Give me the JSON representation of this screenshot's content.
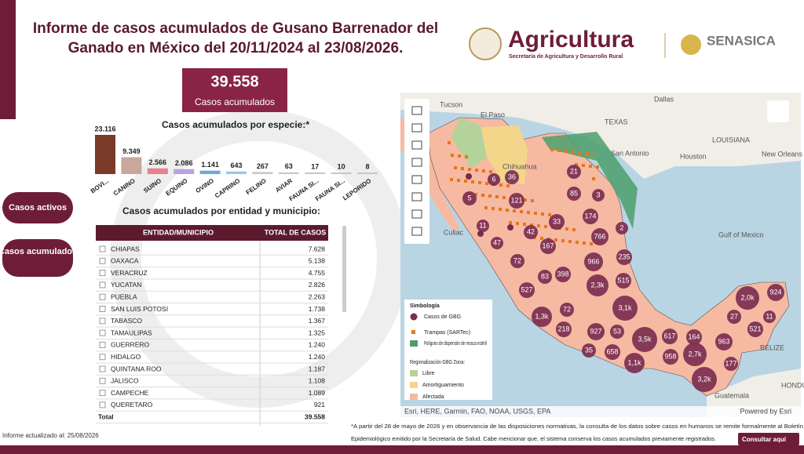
{
  "header": {
    "title_lines": [
      "Informe de casos acumulados de Gusano Barrenador del",
      "Ganado en México del 20/11/2024 al 23/08/2026."
    ],
    "logo": "Agricultura",
    "logo_sub": "Secretaría de Agricultura y Desarrollo Rural",
    "logo2": "SENASICA"
  },
  "kpi": {
    "value": "39.558",
    "label": "Casos acumulados"
  },
  "buttons": [
    "Casos activos",
    "Casos acumulados"
  ],
  "chart_data": {
    "type": "bar",
    "title": "Casos acumulados por especie:*",
    "categories": [
      "BOVI...",
      "CANINO",
      "SUINO",
      "EQUINO",
      "OVINO",
      "CAPRINO",
      "FELINO",
      "AVIAR",
      "FAUNA SI...",
      "FAUNA SI...",
      "LEPORIDO"
    ],
    "values": [
      23116,
      9349,
      2566,
      2086,
      1141,
      643,
      267,
      63,
      17,
      10,
      8
    ],
    "value_labels": [
      "23.116",
      "9.349",
      "2.566",
      "2.086",
      "1.141",
      "643",
      "267",
      "63",
      "17",
      "10",
      "8"
    ],
    "colors": [
      "#7b3b2a",
      "#c9a79c",
      "#e8808f",
      "#b8a3dc",
      "#6fa8dc",
      "#9ec5e8",
      "#c7c7c7",
      "#c7c7c7",
      "#c7c7c7",
      "#c7c7c7",
      "#c7c7c7"
    ]
  },
  "table": {
    "title": "Casos acumulados por entidad y municipio:",
    "columns": [
      "ENTIDAD/MUNICIPIO",
      "TOTAL DE CASOS"
    ],
    "rows": [
      [
        "CHIAPAS",
        "7.628"
      ],
      [
        "OAXACA",
        "5.138"
      ],
      [
        "VERACRUZ",
        "4.755"
      ],
      [
        "YUCATAN",
        "2.826"
      ],
      [
        "PUEBLA",
        "2.263"
      ],
      [
        "SAN LUIS POTOSI",
        "1.738"
      ],
      [
        "TABASCO",
        "1.367"
      ],
      [
        "TAMAULIPAS",
        "1.325"
      ],
      [
        "GUERRERO",
        "1.240"
      ],
      [
        "HIDALGO",
        "1.240"
      ],
      [
        "QUINTANA ROO",
        "1.187"
      ],
      [
        "JALISCO",
        "1.108"
      ],
      [
        "CAMPECHE",
        "1.089"
      ],
      [
        "QUERETARO",
        "921"
      ]
    ],
    "total": [
      "Total",
      "39.558"
    ]
  },
  "map": {
    "places": [
      "Tucson",
      "Dallas",
      "El Paso",
      "TEXAS",
      "LOUISIANA",
      "Houston",
      "New Orleans",
      "San Antonio",
      "Chihuahua",
      "Culiac",
      "Gulf of Mexico",
      "BELIZE",
      "HONDU",
      "Guatemala"
    ],
    "clusters": [
      "21",
      "36",
      "6",
      "5",
      "121",
      "85",
      "3",
      "174",
      "42",
      "11",
      "47",
      "33",
      "167",
      "766",
      "2",
      "72",
      "966",
      "235",
      "83",
      "398",
      "527",
      "2,3k",
      "515",
      "3,1k",
      "1,3k",
      "72",
      "218",
      "927",
      "53",
      "3,5k",
      "617",
      "164",
      "963",
      "2,0k",
      "924",
      "27",
      "521",
      "11",
      "35",
      "658",
      "958",
      "2,7k",
      "1,1k",
      "177",
      "3,2k"
    ],
    "legend": {
      "title": "Simbología",
      "items": [
        "Casos de GBG",
        "Trampas (SARTec)",
        "Polígono de dispersión de mosca estéril"
      ],
      "zone_title": "Regionalización GBG Zona:",
      "zones": [
        "Libre",
        "Amortiguamiento",
        "Afectada"
      ]
    },
    "attribution": "Esri, HERE, Garmin, FAO, NOAA, USGS, EPA",
    "powered": "Powered by Esri"
  },
  "footer": {
    "updated": "Informe actualizado al: 25/08/2026",
    "note_lines": [
      "*A partir del 28 de mayo de 2026 y en observancia de las disposiciones normativas, la consulta de los datos sobre casos en humanos se remite formalmente al Boletín",
      "Epidemiológico emitido por la Secretaría de Salud. Cabe mencionar que, el sistema conserva los casos acumulados previamente registrados."
    ],
    "link": "Consultar aquí"
  }
}
